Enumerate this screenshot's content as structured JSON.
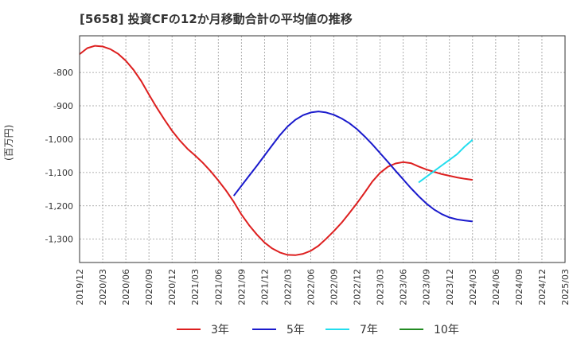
{
  "title": "[5658]  投資CFの12か月移動合計の平均値の推移",
  "chart_data": {
    "type": "line",
    "ylabel": "(百万円)",
    "xlabel": "",
    "ylim": [
      -1370,
      -690
    ],
    "grid": true,
    "legend_position": "bottom",
    "x_ticks": [
      "2019/12",
      "2020/03",
      "2020/06",
      "2020/09",
      "2020/12",
      "2021/03",
      "2021/06",
      "2021/09",
      "2021/12",
      "2022/03",
      "2022/06",
      "2022/09",
      "2022/12",
      "2023/03",
      "2023/06",
      "2023/09",
      "2023/12",
      "2024/03",
      "2024/06",
      "2024/09",
      "2024/12",
      "2025/03"
    ],
    "y_ticks": [
      -800,
      -900,
      -1000,
      -1100,
      -1200,
      -1300
    ],
    "y_tick_labels": [
      "-800",
      "-900",
      "-1,000",
      "-1,100",
      "-1,200",
      "-1,300"
    ],
    "series": [
      {
        "name": "3年",
        "color": "#dd1f1f",
        "x": [
          "2019/12",
          "2020/01",
          "2020/02",
          "2020/03",
          "2020/04",
          "2020/05",
          "2020/06",
          "2020/07",
          "2020/08",
          "2020/09",
          "2020/10",
          "2020/11",
          "2020/12",
          "2021/01",
          "2021/02",
          "2021/03",
          "2021/04",
          "2021/05",
          "2021/06",
          "2021/07",
          "2021/08",
          "2021/09",
          "2021/10",
          "2021/11",
          "2021/12",
          "2022/01",
          "2022/02",
          "2022/03",
          "2022/04",
          "2022/05",
          "2022/06",
          "2022/07",
          "2022/08",
          "2022/09",
          "2022/10",
          "2022/11",
          "2022/12",
          "2023/01",
          "2023/02",
          "2023/03",
          "2023/04",
          "2023/05",
          "2023/06",
          "2023/07",
          "2023/08",
          "2023/09",
          "2023/10",
          "2023/11",
          "2023/12",
          "2024/01",
          "2024/02",
          "2024/03"
        ],
        "values": [
          -745,
          -727,
          -720,
          -722,
          -730,
          -744,
          -765,
          -792,
          -826,
          -866,
          -905,
          -941,
          -975,
          -1004,
          -1029,
          -1049,
          -1071,
          -1096,
          -1124,
          -1154,
          -1188,
          -1226,
          -1258,
          -1286,
          -1310,
          -1328,
          -1340,
          -1347,
          -1348,
          -1344,
          -1335,
          -1320,
          -1299,
          -1276,
          -1251,
          -1222,
          -1192,
          -1160,
          -1127,
          -1101,
          -1083,
          -1073,
          -1069,
          -1072,
          -1082,
          -1091,
          -1098,
          -1105,
          -1110,
          -1115,
          -1119,
          -1122
        ]
      },
      {
        "name": "5年",
        "color": "#1a1acc",
        "x": [
          "2021/08",
          "2021/09",
          "2021/10",
          "2021/11",
          "2021/12",
          "2022/01",
          "2022/02",
          "2022/03",
          "2022/04",
          "2022/05",
          "2022/06",
          "2022/07",
          "2022/08",
          "2022/09",
          "2022/10",
          "2022/11",
          "2022/12",
          "2023/01",
          "2023/02",
          "2023/03",
          "2023/04",
          "2023/05",
          "2023/06",
          "2023/07",
          "2023/08",
          "2023/09",
          "2023/10",
          "2023/11",
          "2023/12",
          "2024/01",
          "2024/02",
          "2024/03"
        ],
        "values": [
          -1170,
          -1140,
          -1110,
          -1080,
          -1049,
          -1018,
          -988,
          -962,
          -942,
          -928,
          -920,
          -917,
          -920,
          -927,
          -938,
          -952,
          -970,
          -992,
          -1016,
          -1042,
          -1068,
          -1095,
          -1121,
          -1147,
          -1171,
          -1193,
          -1211,
          -1225,
          -1235,
          -1241,
          -1244,
          -1247
        ]
      },
      {
        "name": "7年",
        "color": "#22ddee",
        "x": [
          "2023/08",
          "2023/09",
          "2023/10",
          "2023/11",
          "2023/12",
          "2024/01",
          "2024/02",
          "2024/03"
        ],
        "values": [
          -1130,
          -1113,
          -1096,
          -1079,
          -1062,
          -1045,
          -1022,
          -1002
        ]
      },
      {
        "name": "10年",
        "color": "#228b22",
        "x": [],
        "values": []
      }
    ]
  }
}
